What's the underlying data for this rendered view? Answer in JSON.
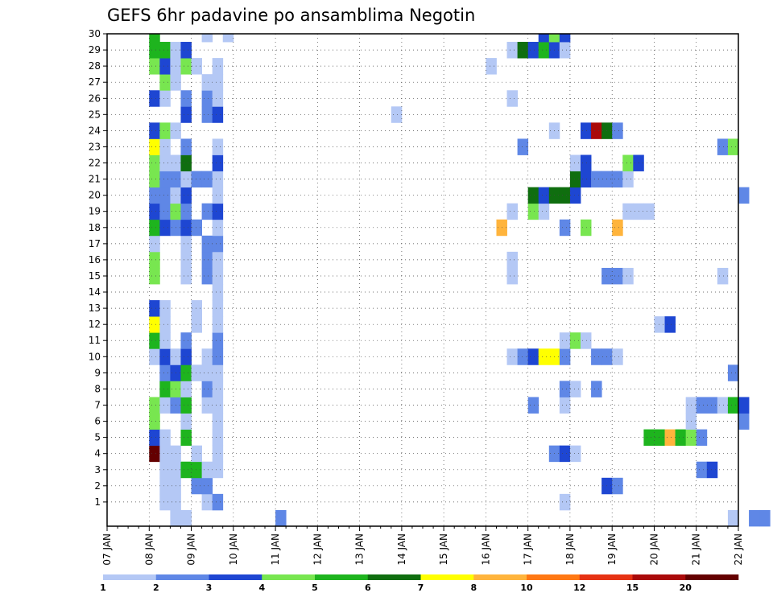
{
  "chart_data": {
    "type": "heatmap",
    "title": "GEFS 6hr padavine po ansamblima Negotin",
    "xlabel": "",
    "ylabel": "",
    "x_tick_labels": [
      "07 JAN",
      "08 JAN",
      "09 JAN",
      "10 JAN",
      "11 JAN",
      "12 JAN",
      "13 JAN",
      "14 JAN",
      "15 JAN",
      "16 JAN",
      "17 JAN",
      "18 JAN",
      "19 JAN",
      "20 JAN",
      "21 JAN",
      "22 JAN"
    ],
    "y_tick_labels": [
      "1",
      "2",
      "3",
      "4",
      "5",
      "6",
      "7",
      "8",
      "9",
      "10",
      "11",
      "12",
      "13",
      "14",
      "15",
      "16",
      "17",
      "18",
      "19",
      "20",
      "21",
      "22",
      "23",
      "24",
      "25",
      "26",
      "27",
      "28",
      "29",
      "30"
    ],
    "xlim_days": [
      7,
      22
    ],
    "steps_per_day": 4,
    "ylim": [
      0,
      30
    ],
    "grid": true,
    "colorbar": {
      "position": "bottom",
      "levels": [
        "1",
        "2",
        "3",
        "4",
        "5",
        "6",
        "7",
        "8",
        "10",
        "12",
        "15",
        "20"
      ],
      "colors": [
        "#b4c8f5",
        "#5f87e6",
        "#1e46d2",
        "#78e650",
        "#1eb41e",
        "#0f6e0f",
        "#ffff00",
        "#ffb43c",
        "#ff7814",
        "#e63214",
        "#aa0a0a",
        "#640000"
      ]
    },
    "cells": [
      {
        "m": 0,
        "t": 6,
        "v": 0
      },
      {
        "m": 0,
        "t": 7,
        "v": 0
      },
      {
        "m": 0,
        "t": 16,
        "v": 1
      },
      {
        "m": 0,
        "t": 59,
        "v": 0
      },
      {
        "m": 0,
        "t": 61,
        "v": 1
      },
      {
        "m": 0,
        "t": 62,
        "v": 1
      },
      {
        "m": 1,
        "t": 5,
        "v": 0
      },
      {
        "m": 1,
        "t": 6,
        "v": 0
      },
      {
        "m": 1,
        "t": 9,
        "v": 0
      },
      {
        "m": 1,
        "t": 10,
        "v": 1
      },
      {
        "m": 1,
        "t": 43,
        "v": 0
      },
      {
        "m": 2,
        "t": 5,
        "v": 0
      },
      {
        "m": 2,
        "t": 6,
        "v": 0
      },
      {
        "m": 2,
        "t": 8,
        "v": 1
      },
      {
        "m": 2,
        "t": 9,
        "v": 1
      },
      {
        "m": 2,
        "t": 47,
        "v": 2
      },
      {
        "m": 2,
        "t": 48,
        "v": 1
      },
      {
        "m": 3,
        "t": 5,
        "v": 0
      },
      {
        "m": 3,
        "t": 6,
        "v": 0
      },
      {
        "m": 3,
        "t": 7,
        "v": 4
      },
      {
        "m": 3,
        "t": 8,
        "v": 4
      },
      {
        "m": 3,
        "t": 9,
        "v": 0
      },
      {
        "m": 3,
        "t": 10,
        "v": 0
      },
      {
        "m": 3,
        "t": 56,
        "v": 1
      },
      {
        "m": 3,
        "t": 57,
        "v": 2
      },
      {
        "m": 4,
        "t": 4,
        "v": 11
      },
      {
        "m": 4,
        "t": 5,
        "v": 0
      },
      {
        "m": 4,
        "t": 6,
        "v": 0
      },
      {
        "m": 4,
        "t": 8,
        "v": 0
      },
      {
        "m": 4,
        "t": 10,
        "v": 0
      },
      {
        "m": 4,
        "t": 42,
        "v": 1
      },
      {
        "m": 4,
        "t": 43,
        "v": 2
      },
      {
        "m": 4,
        "t": 44,
        "v": 0
      },
      {
        "m": 5,
        "t": 4,
        "v": 2
      },
      {
        "m": 5,
        "t": 5,
        "v": 0
      },
      {
        "m": 5,
        "t": 7,
        "v": 4
      },
      {
        "m": 5,
        "t": 10,
        "v": 0
      },
      {
        "m": 5,
        "t": 51,
        "v": 4
      },
      {
        "m": 5,
        "t": 52,
        "v": 4
      },
      {
        "m": 5,
        "t": 53,
        "v": 7
      },
      {
        "m": 5,
        "t": 54,
        "v": 4
      },
      {
        "m": 5,
        "t": 55,
        "v": 3
      },
      {
        "m": 5,
        "t": 56,
        "v": 1
      },
      {
        "m": 6,
        "t": 4,
        "v": 3
      },
      {
        "m": 6,
        "t": 7,
        "v": 0
      },
      {
        "m": 6,
        "t": 10,
        "v": 0
      },
      {
        "m": 6,
        "t": 55,
        "v": 0
      },
      {
        "m": 6,
        "t": 60,
        "v": 1
      },
      {
        "m": 7,
        "t": 4,
        "v": 3
      },
      {
        "m": 7,
        "t": 5,
        "v": 0
      },
      {
        "m": 7,
        "t": 6,
        "v": 1
      },
      {
        "m": 7,
        "t": 7,
        "v": 4
      },
      {
        "m": 7,
        "t": 9,
        "v": 0
      },
      {
        "m": 7,
        "t": 10,
        "v": 0
      },
      {
        "m": 7,
        "t": 40,
        "v": 1
      },
      {
        "m": 7,
        "t": 43,
        "v": 0
      },
      {
        "m": 7,
        "t": 55,
        "v": 0
      },
      {
        "m": 7,
        "t": 56,
        "v": 1
      },
      {
        "m": 7,
        "t": 57,
        "v": 1
      },
      {
        "m": 7,
        "t": 58,
        "v": 0
      },
      {
        "m": 7,
        "t": 59,
        "v": 4
      },
      {
        "m": 7,
        "t": 60,
        "v": 2
      },
      {
        "m": 8,
        "t": 5,
        "v": 4
      },
      {
        "m": 8,
        "t": 6,
        "v": 3
      },
      {
        "m": 8,
        "t": 7,
        "v": 0
      },
      {
        "m": 8,
        "t": 9,
        "v": 1
      },
      {
        "m": 8,
        "t": 10,
        "v": 0
      },
      {
        "m": 8,
        "t": 43,
        "v": 1
      },
      {
        "m": 8,
        "t": 44,
        "v": 0
      },
      {
        "m": 8,
        "t": 46,
        "v": 1
      },
      {
        "m": 9,
        "t": 5,
        "v": 1
      },
      {
        "m": 9,
        "t": 6,
        "v": 2
      },
      {
        "m": 9,
        "t": 7,
        "v": 4
      },
      {
        "m": 9,
        "t": 8,
        "v": 0
      },
      {
        "m": 9,
        "t": 9,
        "v": 0
      },
      {
        "m": 9,
        "t": 10,
        "v": 0
      },
      {
        "m": 9,
        "t": 59,
        "v": 1
      },
      {
        "m": 10,
        "t": 4,
        "v": 0
      },
      {
        "m": 10,
        "t": 5,
        "v": 2
      },
      {
        "m": 10,
        "t": 6,
        "v": 0
      },
      {
        "m": 10,
        "t": 7,
        "v": 2
      },
      {
        "m": 10,
        "t": 9,
        "v": 0
      },
      {
        "m": 10,
        "t": 10,
        "v": 1
      },
      {
        "m": 10,
        "t": 38,
        "v": 0
      },
      {
        "m": 10,
        "t": 39,
        "v": 1
      },
      {
        "m": 10,
        "t": 40,
        "v": 2
      },
      {
        "m": 10,
        "t": 41,
        "v": 6
      },
      {
        "m": 10,
        "t": 42,
        "v": 6
      },
      {
        "m": 10,
        "t": 43,
        "v": 1
      },
      {
        "m": 10,
        "t": 46,
        "v": 1
      },
      {
        "m": 10,
        "t": 47,
        "v": 1
      },
      {
        "m": 10,
        "t": 48,
        "v": 0
      },
      {
        "m": 11,
        "t": 4,
        "v": 4
      },
      {
        "m": 11,
        "t": 5,
        "v": 0
      },
      {
        "m": 11,
        "t": 7,
        "v": 1
      },
      {
        "m": 11,
        "t": 10,
        "v": 1
      },
      {
        "m": 11,
        "t": 43,
        "v": 0
      },
      {
        "m": 11,
        "t": 44,
        "v": 3
      },
      {
        "m": 11,
        "t": 45,
        "v": 0
      },
      {
        "m": 12,
        "t": 4,
        "v": 6
      },
      {
        "m": 12,
        "t": 5,
        "v": 0
      },
      {
        "m": 12,
        "t": 8,
        "v": 0
      },
      {
        "m": 12,
        "t": 10,
        "v": 0
      },
      {
        "m": 12,
        "t": 52,
        "v": 0
      },
      {
        "m": 12,
        "t": 53,
        "v": 2
      },
      {
        "m": 13,
        "t": 4,
        "v": 2
      },
      {
        "m": 13,
        "t": 5,
        "v": 0
      },
      {
        "m": 13,
        "t": 8,
        "v": 0
      },
      {
        "m": 13,
        "t": 10,
        "v": 0
      },
      {
        "m": 14,
        "t": 10,
        "v": 0
      },
      {
        "m": 15,
        "t": 4,
        "v": 3
      },
      {
        "m": 15,
        "t": 7,
        "v": 0
      },
      {
        "m": 15,
        "t": 9,
        "v": 1
      },
      {
        "m": 15,
        "t": 10,
        "v": 0
      },
      {
        "m": 15,
        "t": 38,
        "v": 0
      },
      {
        "m": 15,
        "t": 47,
        "v": 1
      },
      {
        "m": 15,
        "t": 48,
        "v": 1
      },
      {
        "m": 15,
        "t": 49,
        "v": 0
      },
      {
        "m": 15,
        "t": 58,
        "v": 0
      },
      {
        "m": 16,
        "t": 4,
        "v": 3
      },
      {
        "m": 16,
        "t": 7,
        "v": 0
      },
      {
        "m": 16,
        "t": 9,
        "v": 1
      },
      {
        "m": 16,
        "t": 10,
        "v": 0
      },
      {
        "m": 16,
        "t": 38,
        "v": 0
      },
      {
        "m": 17,
        "t": 4,
        "v": 0
      },
      {
        "m": 17,
        "t": 7,
        "v": 0
      },
      {
        "m": 17,
        "t": 9,
        "v": 1
      },
      {
        "m": 17,
        "t": 10,
        "v": 1
      },
      {
        "m": 18,
        "t": 4,
        "v": 4
      },
      {
        "m": 18,
        "t": 5,
        "v": 2
      },
      {
        "m": 18,
        "t": 6,
        "v": 1
      },
      {
        "m": 18,
        "t": 7,
        "v": 2
      },
      {
        "m": 18,
        "t": 8,
        "v": 1
      },
      {
        "m": 18,
        "t": 10,
        "v": 0
      },
      {
        "m": 18,
        "t": 37,
        "v": 7
      },
      {
        "m": 18,
        "t": 43,
        "v": 1
      },
      {
        "m": 18,
        "t": 45,
        "v": 3
      },
      {
        "m": 18,
        "t": 48,
        "v": 7
      },
      {
        "m": 19,
        "t": 4,
        "v": 2
      },
      {
        "m": 19,
        "t": 5,
        "v": 1
      },
      {
        "m": 19,
        "t": 6,
        "v": 3
      },
      {
        "m": 19,
        "t": 7,
        "v": 1
      },
      {
        "m": 19,
        "t": 9,
        "v": 1
      },
      {
        "m": 19,
        "t": 10,
        "v": 2
      },
      {
        "m": 19,
        "t": 38,
        "v": 0
      },
      {
        "m": 19,
        "t": 40,
        "v": 3
      },
      {
        "m": 19,
        "t": 41,
        "v": 0
      },
      {
        "m": 19,
        "t": 49,
        "v": 0
      },
      {
        "m": 19,
        "t": 50,
        "v": 0
      },
      {
        "m": 19,
        "t": 51,
        "v": 0
      },
      {
        "m": 20,
        "t": 4,
        "v": 1
      },
      {
        "m": 20,
        "t": 5,
        "v": 1
      },
      {
        "m": 20,
        "t": 6,
        "v": 0
      },
      {
        "m": 20,
        "t": 7,
        "v": 2
      },
      {
        "m": 20,
        "t": 10,
        "v": 0
      },
      {
        "m": 20,
        "t": 40,
        "v": 5
      },
      {
        "m": 20,
        "t": 41,
        "v": 2
      },
      {
        "m": 20,
        "t": 42,
        "v": 5
      },
      {
        "m": 20,
        "t": 43,
        "v": 5
      },
      {
        "m": 20,
        "t": 44,
        "v": 2
      },
      {
        "m": 20,
        "t": 60,
        "v": 1
      },
      {
        "m": 21,
        "t": 4,
        "v": 3
      },
      {
        "m": 21,
        "t": 5,
        "v": 1
      },
      {
        "m": 21,
        "t": 6,
        "v": 1
      },
      {
        "m": 21,
        "t": 7,
        "v": 0
      },
      {
        "m": 21,
        "t": 8,
        "v": 1
      },
      {
        "m": 21,
        "t": 9,
        "v": 1
      },
      {
        "m": 21,
        "t": 10,
        "v": 0
      },
      {
        "m": 21,
        "t": 44,
        "v": 5
      },
      {
        "m": 21,
        "t": 45,
        "v": 2
      },
      {
        "m": 21,
        "t": 46,
        "v": 1
      },
      {
        "m": 21,
        "t": 47,
        "v": 1
      },
      {
        "m": 21,
        "t": 48,
        "v": 1
      },
      {
        "m": 21,
        "t": 49,
        "v": 0
      },
      {
        "m": 22,
        "t": 4,
        "v": 3
      },
      {
        "m": 22,
        "t": 5,
        "v": 0
      },
      {
        "m": 22,
        "t": 6,
        "v": 0
      },
      {
        "m": 22,
        "t": 7,
        "v": 5
      },
      {
        "m": 22,
        "t": 10,
        "v": 2
      },
      {
        "m": 22,
        "t": 44,
        "v": 0
      },
      {
        "m": 22,
        "t": 45,
        "v": 2
      },
      {
        "m": 22,
        "t": 49,
        "v": 3
      },
      {
        "m": 22,
        "t": 50,
        "v": 2
      },
      {
        "m": 23,
        "t": 4,
        "v": 6
      },
      {
        "m": 23,
        "t": 5,
        "v": 0
      },
      {
        "m": 23,
        "t": 7,
        "v": 1
      },
      {
        "m": 23,
        "t": 10,
        "v": 0
      },
      {
        "m": 23,
        "t": 39,
        "v": 1
      },
      {
        "m": 23,
        "t": 58,
        "v": 1
      },
      {
        "m": 23,
        "t": 59,
        "v": 3
      },
      {
        "m": 24,
        "t": 4,
        "v": 2
      },
      {
        "m": 24,
        "t": 5,
        "v": 3
      },
      {
        "m": 24,
        "t": 6,
        "v": 0
      },
      {
        "m": 24,
        "t": 42,
        "v": 0
      },
      {
        "m": 24,
        "t": 45,
        "v": 2
      },
      {
        "m": 24,
        "t": 46,
        "v": 10
      },
      {
        "m": 24,
        "t": 47,
        "v": 5
      },
      {
        "m": 24,
        "t": 48,
        "v": 1
      },
      {
        "m": 25,
        "t": 7,
        "v": 2
      },
      {
        "m": 25,
        "t": 9,
        "v": 1
      },
      {
        "m": 25,
        "t": 10,
        "v": 2
      },
      {
        "m": 25,
        "t": 27,
        "v": 0
      },
      {
        "m": 26,
        "t": 4,
        "v": 2
      },
      {
        "m": 26,
        "t": 5,
        "v": 0
      },
      {
        "m": 26,
        "t": 7,
        "v": 1
      },
      {
        "m": 26,
        "t": 9,
        "v": 1
      },
      {
        "m": 26,
        "t": 10,
        "v": 0
      },
      {
        "m": 26,
        "t": 38,
        "v": 0
      },
      {
        "m": 27,
        "t": 5,
        "v": 3
      },
      {
        "m": 27,
        "t": 6,
        "v": 0
      },
      {
        "m": 27,
        "t": 9,
        "v": 0
      },
      {
        "m": 27,
        "t": 10,
        "v": 0
      },
      {
        "m": 28,
        "t": 4,
        "v": 3
      },
      {
        "m": 28,
        "t": 5,
        "v": 2
      },
      {
        "m": 28,
        "t": 6,
        "v": 0
      },
      {
        "m": 28,
        "t": 7,
        "v": 3
      },
      {
        "m": 28,
        "t": 8,
        "v": 0
      },
      {
        "m": 28,
        "t": 10,
        "v": 0
      },
      {
        "m": 28,
        "t": 36,
        "v": 0
      },
      {
        "m": 29,
        "t": 4,
        "v": 4
      },
      {
        "m": 29,
        "t": 5,
        "v": 4
      },
      {
        "m": 29,
        "t": 6,
        "v": 0
      },
      {
        "m": 29,
        "t": 7,
        "v": 2
      },
      {
        "m": 29,
        "t": 38,
        "v": 0
      },
      {
        "m": 29,
        "t": 39,
        "v": 5
      },
      {
        "m": 29,
        "t": 40,
        "v": 2
      },
      {
        "m": 29,
        "t": 41,
        "v": 4
      },
      {
        "m": 29,
        "t": 42,
        "v": 2
      },
      {
        "m": 29,
        "t": 43,
        "v": 0
      },
      {
        "m": 30,
        "t": 4,
        "v": 4
      },
      {
        "m": 30,
        "t": 9,
        "v": 0
      },
      {
        "m": 30,
        "t": 11,
        "v": 0
      },
      {
        "m": 30,
        "t": 41,
        "v": 2
      },
      {
        "m": 30,
        "t": 42,
        "v": 3
      },
      {
        "m": 30,
        "t": 43,
        "v": 2
      }
    ]
  }
}
